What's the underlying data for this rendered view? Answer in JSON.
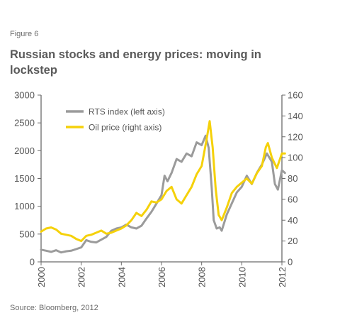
{
  "figure_label": "Figure 6",
  "title": "Russian stocks and energy prices: moving in lockstep",
  "source": "Source: Bloomberg, 2012",
  "colors": {
    "rts": "#9b9b9b",
    "oil": "#f5d10a",
    "axis": "#6b6b6b",
    "text": "#555555"
  },
  "chart_data": {
    "type": "line",
    "title": "Russian stocks and energy prices: moving in lockstep",
    "xlabel": "",
    "ylabel": "",
    "x_ticks": [
      "2000",
      "2002",
      "2004",
      "2006",
      "2008",
      "2010",
      "2012"
    ],
    "x_range": [
      2000,
      2012
    ],
    "left_axis": {
      "range": [
        0,
        3000
      ],
      "ticks": [
        "0",
        "500",
        "1000",
        "1500",
        "2000",
        "2500",
        "3000"
      ]
    },
    "right_axis": {
      "range": [
        0,
        160
      ],
      "ticks": [
        "0",
        "20",
        "40",
        "60",
        "80",
        "100",
        "120",
        "140",
        "160"
      ]
    },
    "grid": false,
    "legend": "top-left",
    "series": [
      {
        "name": "RTS index (left axis)",
        "axis": "left",
        "x": [
          2000.0,
          2000.25,
          2000.5,
          2000.75,
          2001.0,
          2001.25,
          2001.5,
          2001.75,
          2002.0,
          2002.25,
          2002.5,
          2002.75,
          2003.0,
          2003.25,
          2003.5,
          2003.75,
          2004.0,
          2004.25,
          2004.5,
          2004.75,
          2005.0,
          2005.25,
          2005.5,
          2005.75,
          2006.0,
          2006.15,
          2006.3,
          2006.5,
          2006.75,
          2007.0,
          2007.25,
          2007.5,
          2007.75,
          2008.0,
          2008.2,
          2008.35,
          2008.5,
          2008.6,
          2008.75,
          2008.9,
          2009.0,
          2009.25,
          2009.5,
          2009.75,
          2010.0,
          2010.25,
          2010.5,
          2010.75,
          2011.0,
          2011.25,
          2011.5,
          2011.65,
          2011.8,
          2012.0,
          2012.15
        ],
        "values": [
          220,
          200,
          180,
          210,
          170,
          190,
          200,
          230,
          260,
          390,
          360,
          350,
          400,
          450,
          560,
          600,
          620,
          670,
          620,
          600,
          650,
          780,
          900,
          1050,
          1200,
          1550,
          1450,
          1600,
          1850,
          1800,
          1950,
          1900,
          2150,
          2100,
          2270,
          2050,
          1350,
          750,
          600,
          620,
          560,
          850,
          1050,
          1250,
          1350,
          1550,
          1400,
          1600,
          1750,
          1950,
          1800,
          1400,
          1300,
          1650,
          1600
        ]
      },
      {
        "name": "Oil price (right axis)",
        "axis": "right",
        "x": [
          2000.0,
          2000.25,
          2000.5,
          2000.75,
          2001.0,
          2001.25,
          2001.5,
          2001.75,
          2002.0,
          2002.25,
          2002.5,
          2002.75,
          2003.0,
          2003.25,
          2003.5,
          2003.75,
          2004.0,
          2004.25,
          2004.5,
          2004.75,
          2005.0,
          2005.25,
          2005.5,
          2005.75,
          2006.0,
          2006.25,
          2006.5,
          2006.75,
          2007.0,
          2007.25,
          2007.5,
          2007.75,
          2008.0,
          2008.25,
          2008.4,
          2008.55,
          2008.7,
          2008.85,
          2009.0,
          2009.25,
          2009.5,
          2009.75,
          2010.0,
          2010.25,
          2010.5,
          2010.75,
          2011.0,
          2011.2,
          2011.3,
          2011.5,
          2011.75,
          2012.0,
          2012.15
        ],
        "values": [
          29,
          32,
          33,
          31,
          27,
          26,
          25,
          22,
          20,
          25,
          26,
          28,
          30,
          27,
          28,
          30,
          32,
          35,
          40,
          47,
          44,
          50,
          58,
          57,
          60,
          68,
          72,
          60,
          56,
          64,
          72,
          84,
          92,
          118,
          135,
          110,
          70,
          45,
          40,
          52,
          66,
          72,
          76,
          80,
          75,
          85,
          92,
          110,
          114,
          100,
          90,
          104,
          104
        ]
      }
    ]
  }
}
